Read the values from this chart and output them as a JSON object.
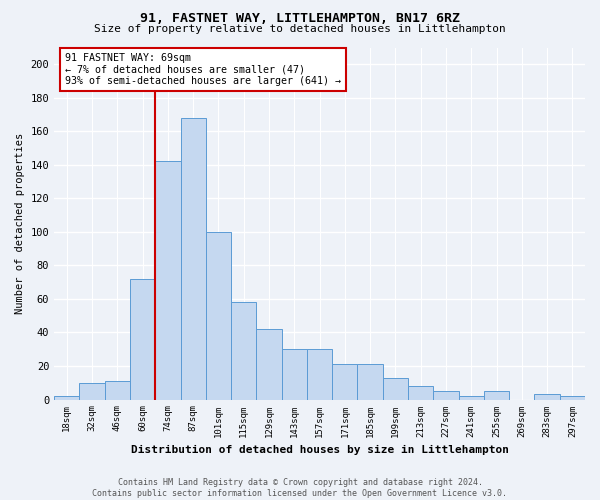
{
  "title": "91, FASTNET WAY, LITTLEHAMPTON, BN17 6RZ",
  "subtitle": "Size of property relative to detached houses in Littlehampton",
  "xlabel": "Distribution of detached houses by size in Littlehampton",
  "ylabel": "Number of detached properties",
  "categories": [
    "18sqm",
    "32sqm",
    "46sqm",
    "60sqm",
    "74sqm",
    "87sqm",
    "101sqm",
    "115sqm",
    "129sqm",
    "143sqm",
    "157sqm",
    "171sqm",
    "185sqm",
    "199sqm",
    "213sqm",
    "227sqm",
    "241sqm",
    "255sqm",
    "269sqm",
    "283sqm",
    "297sqm"
  ],
  "values": [
    2,
    10,
    11,
    72,
    142,
    168,
    100,
    58,
    42,
    30,
    30,
    21,
    21,
    13,
    8,
    5,
    2,
    5,
    0,
    3,
    2
  ],
  "bar_color": "#c5d8f0",
  "bar_edge_color": "#5b9bd5",
  "annotation_text_line1": "91 FASTNET WAY: 69sqm",
  "annotation_text_line2": "← 7% of detached houses are smaller (47)",
  "annotation_text_line3": "93% of semi-detached houses are larger (641) →",
  "red_line_color": "#cc0000",
  "annotation_box_color": "#ffffff",
  "annotation_box_edge": "#cc0000",
  "footer_line1": "Contains HM Land Registry data © Crown copyright and database right 2024.",
  "footer_line2": "Contains public sector information licensed under the Open Government Licence v3.0.",
  "background_color": "#eef2f8",
  "ylim": [
    0,
    210
  ],
  "yticks": [
    0,
    20,
    40,
    60,
    80,
    100,
    120,
    140,
    160,
    180,
    200
  ]
}
